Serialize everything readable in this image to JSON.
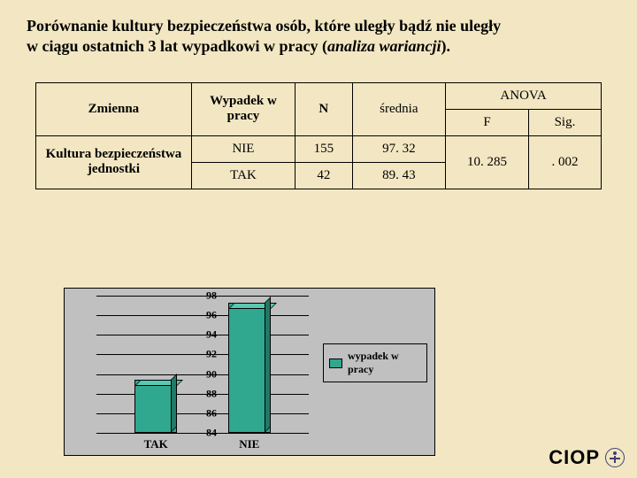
{
  "title_line1": "Porównanie kultury bezpieczeństwa osób, które uległy bądź nie uległy",
  "title_line2_a": "w ciągu ostatnich 3 lat wypadkowi w pracy (",
  "title_line2_b": "analiza wariancji",
  "title_line2_c": ").",
  "table": {
    "h_zmienna": "Zmienna",
    "h_wypadek": "Wypadek w pracy",
    "h_n": "N",
    "h_anova": "ANOVA",
    "h_srednia": "średnia",
    "h_f": "F",
    "h_sig": "Sig.",
    "row_var": "Kultura bezpieczeństwa jednostki",
    "r1_wyp": "NIE",
    "r1_n": "155",
    "r1_sr": "97. 32",
    "r2_wyp": "TAK",
    "r2_n": "42",
    "r2_sr": "89. 43",
    "f_val": "10. 285",
    "sig_val": ". 002"
  },
  "chart": {
    "type": "bar",
    "ylim_min": 84,
    "ylim_max": 98,
    "ytick_step": 2,
    "yticks": [
      84,
      86,
      88,
      90,
      92,
      94,
      96,
      98
    ],
    "categories": [
      "TAK",
      "NIE"
    ],
    "values": [
      89.43,
      97.32
    ],
    "bar_color_front": "#2fa88f",
    "bar_color_top": "#57c9b0",
    "bar_color_side": "#1f7a66",
    "background_color": "#c0c0c0",
    "grid_color": "#000000",
    "legend_text": "wypadek w pracy",
    "label_fontsize": 12,
    "tick_fontsize": 12
  },
  "logo_text": "CIOP"
}
